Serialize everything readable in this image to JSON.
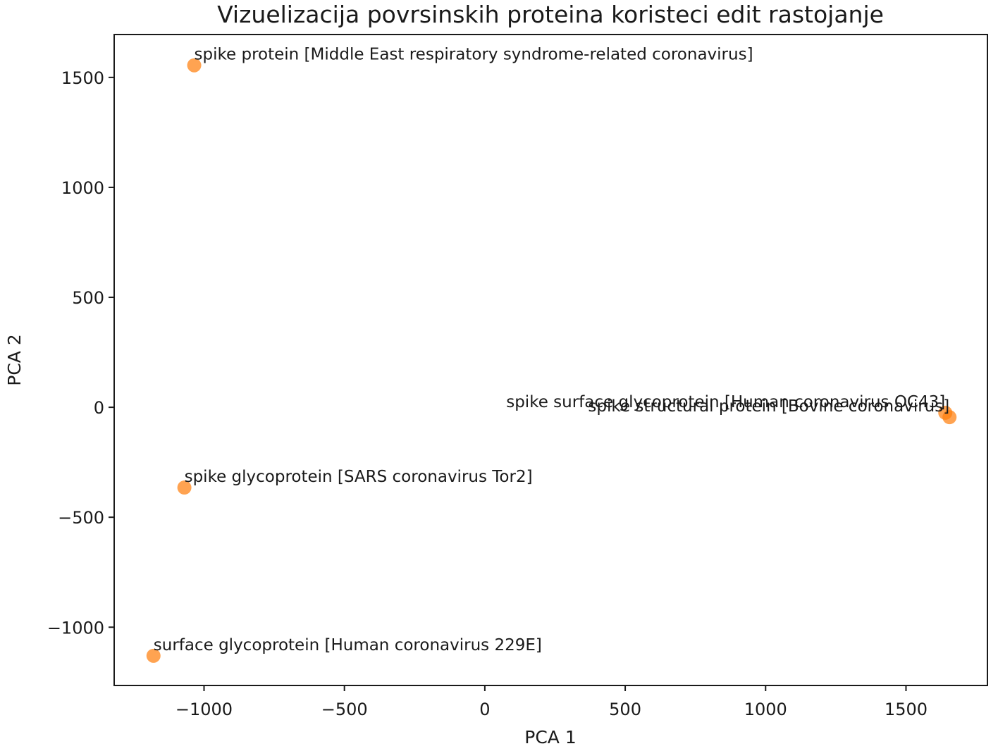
{
  "chart_data": {
    "type": "scatter",
    "title": "Vizuelizacija povrsinskih proteina koristeci edit rastojanje",
    "xlabel": "PCA 1",
    "ylabel": "PCA 2",
    "xlim": [
      -1320,
      1790
    ],
    "ylim": [
      -1265,
      1695
    ],
    "xticks": [
      -1000,
      -500,
      0,
      500,
      1000,
      1500
    ],
    "xtick_labels": [
      "−1000",
      "−500",
      "0",
      "500",
      "1000",
      "1500"
    ],
    "yticks": [
      -1000,
      -500,
      0,
      500,
      1000,
      1500
    ],
    "ytick_labels": [
      "−1000",
      "−500",
      "0",
      "500",
      "1000",
      "1500"
    ],
    "grid": false,
    "point_color": "#ff7f0e",
    "points": [
      {
        "x": -1035,
        "y": 1555,
        "label": "spike protein [Middle East respiratory syndrome-related coronavirus]",
        "label_anchor": "start"
      },
      {
        "x": 1640,
        "y": -25,
        "label": "spike surface glycoprotein [Human coronavirus OC43]",
        "label_anchor": "end"
      },
      {
        "x": 1655,
        "y": -45,
        "label": "spike structural protein [Bovine coronavirus]",
        "label_anchor": "end"
      },
      {
        "x": -1070,
        "y": -365,
        "label": "spike glycoprotein [SARS coronavirus Tor2]",
        "label_anchor": "start"
      },
      {
        "x": -1180,
        "y": -1130,
        "label": "surface glycoprotein [Human coronavirus 229E]",
        "label_anchor": "start"
      }
    ]
  }
}
